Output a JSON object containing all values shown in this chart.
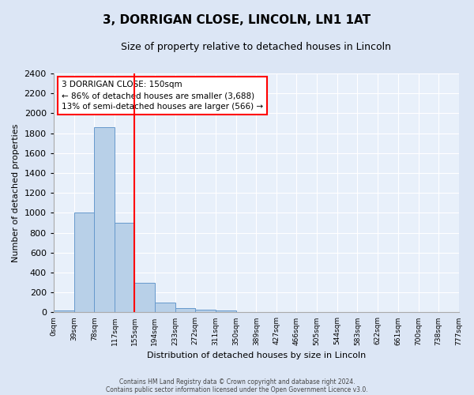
{
  "title": "3, DORRIGAN CLOSE, LINCOLN, LN1 1AT",
  "subtitle": "Size of property relative to detached houses in Lincoln",
  "xlabel": "Distribution of detached houses by size in Lincoln",
  "ylabel": "Number of detached properties",
  "bin_edges": [
    0,
    39,
    78,
    117,
    155,
    194,
    233,
    272,
    311,
    350,
    389,
    427,
    466,
    505,
    544,
    583,
    622,
    661,
    700,
    738,
    777
  ],
  "bin_labels": [
    "0sqm",
    "39sqm",
    "78sqm",
    "117sqm",
    "155sqm",
    "194sqm",
    "233sqm",
    "272sqm",
    "311sqm",
    "350sqm",
    "389sqm",
    "427sqm",
    "466sqm",
    "505sqm",
    "544sqm",
    "583sqm",
    "622sqm",
    "661sqm",
    "700sqm",
    "738sqm",
    "777sqm"
  ],
  "bar_heights": [
    20,
    1000,
    1860,
    900,
    300,
    100,
    40,
    25,
    20,
    0,
    0,
    0,
    0,
    0,
    0,
    0,
    0,
    0,
    0,
    0
  ],
  "bar_color": "#b8d0e8",
  "bar_edge_color": "#6699cc",
  "vline_x": 155,
  "vline_color": "red",
  "ylim": [
    0,
    2400
  ],
  "yticks": [
    0,
    200,
    400,
    600,
    800,
    1000,
    1200,
    1400,
    1600,
    1800,
    2000,
    2200,
    2400
  ],
  "annotation_box_text": "3 DORRIGAN CLOSE: 150sqm\n← 86% of detached houses are smaller (3,688)\n13% of semi-detached houses are larger (566) →",
  "box_edge_color": "red",
  "bg_color": "#dce6f5",
  "plot_bg_color": "#e8f0fa",
  "grid_color": "#ffffff",
  "footer_line1": "Contains HM Land Registry data © Crown copyright and database right 2024.",
  "footer_line2": "Contains public sector information licensed under the Open Government Licence v3.0.",
  "title_fontsize": 11,
  "subtitle_fontsize": 9,
  "ylabel_fontsize": 8,
  "xlabel_fontsize": 8
}
